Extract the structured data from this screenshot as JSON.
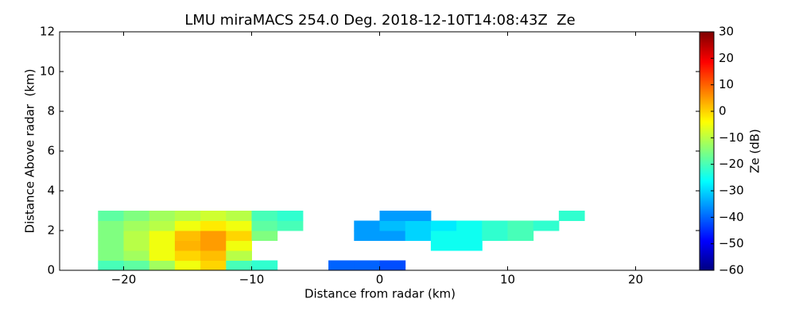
{
  "chart_data": {
    "type": "heatmap",
    "title": "LMU miraMACS 254.0 Deg. 2018-12-10T14:08:43Z  Ze",
    "x_label": "Distance from radar (km)",
    "y_label": "Distance Above radar  (km)",
    "colorbar_label": "Ze (dB)",
    "colormap": "jet",
    "xlim": [
      -25,
      25
    ],
    "ylim": [
      0,
      12
    ],
    "clim": [
      -60,
      30
    ],
    "xticks": [
      {
        "value": -20,
        "label": "−20"
      },
      {
        "value": -10,
        "label": "−10"
      },
      0,
      10,
      20
    ],
    "yticks": [
      0,
      2,
      4,
      6,
      8,
      10,
      12
    ],
    "cticks": [
      {
        "value": -60,
        "label": "−60"
      },
      {
        "value": -50,
        "label": "−50"
      },
      {
        "value": -40,
        "label": "−40"
      },
      {
        "value": -30,
        "label": "−30"
      },
      {
        "value": -20,
        "label": "−20"
      },
      {
        "value": -10,
        "label": "−10"
      },
      0,
      10,
      20,
      30
    ],
    "xbins": [
      -22,
      -20,
      -18,
      -16,
      -14,
      -12,
      -10,
      -8,
      -6,
      -4,
      -2,
      0,
      2,
      4,
      6,
      8,
      10,
      12,
      14,
      16
    ],
    "ybins": [
      0,
      0.5,
      1,
      1.5,
      2,
      2.5,
      3
    ],
    "values": [
      [
        -20,
        -18,
        -12,
        -5,
        0,
        -20,
        -22,
        null,
        null,
        -40,
        -40,
        -42,
        null,
        null,
        null,
        null,
        null,
        null,
        null
      ],
      [
        -15,
        -12,
        -5,
        0,
        2,
        -10,
        null,
        null,
        null,
        null,
        null,
        null,
        null,
        null,
        null,
        null,
        null,
        null,
        null
      ],
      [
        -15,
        -10,
        -5,
        3,
        5,
        -5,
        null,
        null,
        null,
        null,
        null,
        null,
        null,
        -25,
        -25,
        null,
        null,
        null,
        null
      ],
      [
        -15,
        -10,
        -5,
        2,
        5,
        0,
        -15,
        null,
        null,
        null,
        -35,
        -35,
        -30,
        -25,
        -25,
        -22,
        -20,
        null,
        null
      ],
      [
        -15,
        -12,
        -10,
        -5,
        -2,
        -5,
        -18,
        -20,
        null,
        null,
        -35,
        -32,
        -30,
        -28,
        -25,
        -22,
        -20,
        -22,
        null
      ],
      [
        -18,
        -15,
        -12,
        -10,
        -8,
        -10,
        -20,
        -22,
        null,
        null,
        null,
        -35,
        -35,
        null,
        null,
        null,
        null,
        null,
        -22
      ]
    ]
  }
}
